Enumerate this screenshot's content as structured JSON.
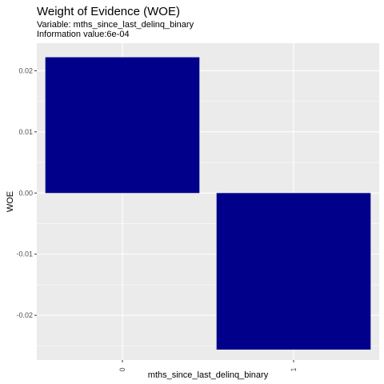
{
  "chart_data": {
    "type": "bar",
    "title": "Weight of Evidence (WOE)",
    "subtitle_variable": "Variable: mths_since_last_delinq_binary",
    "subtitle_iv": "Information value:6e-04",
    "xlabel": "mths_since_last_delinq_binary",
    "ylabel": "WOE",
    "categories": [
      "0",
      "1"
    ],
    "values": [
      0.0222,
      -0.0256
    ],
    "ylim": [
      -0.0273,
      0.0245
    ],
    "yticks": [
      0.02,
      0.01,
      0.0,
      -0.01,
      -0.02
    ],
    "ytick_labels": [
      "0.02",
      "0.01",
      "0.00",
      "-0.01",
      "-0.02"
    ],
    "grid": true,
    "bar_color": "#00008B",
    "panel_color": "#EBEBEB",
    "grid_color": "#FFFFFF"
  }
}
